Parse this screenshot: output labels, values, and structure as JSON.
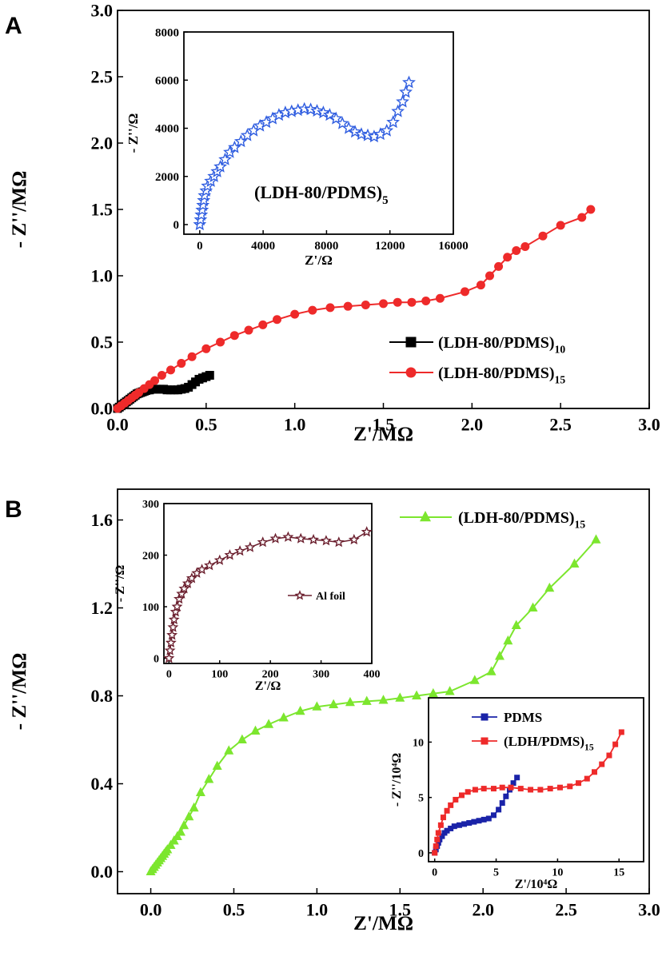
{
  "figure": {
    "panel_a_letter": "A",
    "panel_b_letter": "B"
  },
  "chart_data": [
    {
      "id": "A-main",
      "type": "line",
      "xlabel": "Z'/MΩ",
      "ylabel": "- Z''/MΩ",
      "xlim": [
        0,
        3.0
      ],
      "ylim": [
        0,
        3.0
      ],
      "xticks": [
        "0.0",
        "0.5",
        "1.0",
        "1.5",
        "2.0",
        "2.5",
        "3.0"
      ],
      "yticks": [
        "0.0",
        "0.5",
        "1.0",
        "1.5",
        "2.0",
        "2.5",
        "3.0"
      ],
      "legend_position": "right-center",
      "series": [
        {
          "name": "(LDH-80/PDMS)",
          "name_sub": "10",
          "color": "#000000",
          "marker": "square",
          "x": [
            0.0,
            0.01,
            0.02,
            0.03,
            0.04,
            0.05,
            0.06,
            0.07,
            0.08,
            0.09,
            0.1,
            0.11,
            0.12,
            0.13,
            0.14,
            0.15,
            0.16,
            0.17,
            0.18,
            0.19,
            0.2,
            0.22,
            0.24,
            0.26,
            0.28,
            0.3,
            0.32,
            0.34,
            0.36,
            0.38,
            0.4,
            0.42,
            0.44,
            0.46,
            0.48,
            0.5,
            0.52
          ],
          "y": [
            0.0,
            0.01,
            0.02,
            0.03,
            0.04,
            0.05,
            0.06,
            0.07,
            0.08,
            0.09,
            0.1,
            0.11,
            0.115,
            0.12,
            0.125,
            0.13,
            0.135,
            0.14,
            0.14,
            0.145,
            0.145,
            0.145,
            0.145,
            0.145,
            0.14,
            0.14,
            0.14,
            0.14,
            0.145,
            0.15,
            0.16,
            0.18,
            0.2,
            0.22,
            0.23,
            0.24,
            0.25
          ]
        },
        {
          "name": "(LDH-80/PDMS)",
          "name_sub": "15",
          "color": "#ee2a2a",
          "marker": "circle",
          "x": [
            0.0,
            0.02,
            0.04,
            0.06,
            0.08,
            0.1,
            0.12,
            0.15,
            0.18,
            0.21,
            0.25,
            0.3,
            0.36,
            0.42,
            0.5,
            0.58,
            0.66,
            0.74,
            0.82,
            0.9,
            1.0,
            1.1,
            1.2,
            1.3,
            1.4,
            1.5,
            1.58,
            1.66,
            1.74,
            1.82,
            1.96,
            2.05,
            2.1,
            2.15,
            2.2,
            2.25,
            2.3,
            2.4,
            2.5,
            2.62,
            2.67
          ],
          "y": [
            0.0,
            0.02,
            0.04,
            0.06,
            0.08,
            0.1,
            0.12,
            0.15,
            0.18,
            0.21,
            0.25,
            0.29,
            0.34,
            0.39,
            0.45,
            0.5,
            0.55,
            0.59,
            0.63,
            0.67,
            0.71,
            0.74,
            0.76,
            0.77,
            0.78,
            0.79,
            0.8,
            0.8,
            0.81,
            0.83,
            0.88,
            0.93,
            1.0,
            1.07,
            1.14,
            1.19,
            1.22,
            1.3,
            1.38,
            1.44,
            1.5
          ]
        }
      ]
    },
    {
      "id": "A-inset",
      "type": "scatter",
      "xlabel": "Z'/Ω",
      "ylabel": "- Z''/Ω",
      "xlim": [
        -1000,
        16000
      ],
      "ylim": [
        -400,
        8000
      ],
      "xticks": [
        "0",
        "4000",
        "8000",
        "12000",
        "16000"
      ],
      "yticks": [
        "0",
        "2000",
        "4000",
        "6000",
        "8000"
      ],
      "annotation": "(LDH-80/PDMS)",
      "annotation_sub": "5",
      "series": [
        {
          "color": "#2f5de0",
          "marker": "star",
          "x": [
            0,
            50,
            100,
            150,
            200,
            250,
            300,
            400,
            500,
            700,
            900,
            1100,
            1300,
            1600,
            1900,
            2200,
            2600,
            3000,
            3400,
            3800,
            4200,
            4600,
            5000,
            5400,
            5800,
            6200,
            6600,
            7000,
            7400,
            7800,
            8200,
            8600,
            9000,
            9400,
            9800,
            10200,
            10600,
            11000,
            11400,
            11800,
            12200,
            12500,
            12800,
            13000,
            13200
          ],
          "y": [
            0,
            200,
            400,
            600,
            800,
            1000,
            1200,
            1400,
            1600,
            1800,
            2000,
            2200,
            2400,
            2700,
            3000,
            3200,
            3450,
            3700,
            3900,
            4100,
            4250,
            4400,
            4550,
            4650,
            4700,
            4750,
            4800,
            4780,
            4720,
            4650,
            4550,
            4400,
            4200,
            4000,
            3850,
            3750,
            3700,
            3650,
            3750,
            3900,
            4250,
            4700,
            5100,
            5500,
            5900
          ]
        }
      ]
    },
    {
      "id": "B-main",
      "type": "line",
      "xlabel": "Z'/MΩ",
      "ylabel": "- Z''/MΩ",
      "xlim": [
        -0.2,
        3.0
      ],
      "ylim": [
        -0.1,
        1.74
      ],
      "xticks": [
        "0.0",
        "0.5",
        "1.0",
        "1.5",
        "2.0",
        "2.5",
        "3.0"
      ],
      "yticks": [
        "0.0",
        "0.4",
        "0.8",
        "1.2",
        "1.6"
      ],
      "legend_position": "top-right",
      "series": [
        {
          "name": "(LDH-80/PDMS)",
          "name_sub": "15",
          "color": "#7ce62e",
          "marker": "triangle",
          "x": [
            0.0,
            0.01,
            0.02,
            0.03,
            0.04,
            0.05,
            0.06,
            0.07,
            0.08,
            0.09,
            0.1,
            0.12,
            0.14,
            0.16,
            0.18,
            0.2,
            0.23,
            0.26,
            0.3,
            0.35,
            0.4,
            0.47,
            0.55,
            0.63,
            0.71,
            0.8,
            0.9,
            1.0,
            1.1,
            1.2,
            1.3,
            1.4,
            1.5,
            1.6,
            1.7,
            1.8,
            1.95,
            2.05,
            2.1,
            2.15,
            2.2,
            2.3,
            2.4,
            2.55,
            2.68
          ],
          "y": [
            0.0,
            0.01,
            0.02,
            0.03,
            0.04,
            0.05,
            0.06,
            0.07,
            0.08,
            0.09,
            0.1,
            0.12,
            0.14,
            0.16,
            0.18,
            0.21,
            0.25,
            0.29,
            0.36,
            0.42,
            0.48,
            0.55,
            0.6,
            0.64,
            0.67,
            0.7,
            0.73,
            0.75,
            0.76,
            0.77,
            0.775,
            0.78,
            0.79,
            0.8,
            0.81,
            0.82,
            0.87,
            0.91,
            0.98,
            1.05,
            1.12,
            1.2,
            1.29,
            1.4,
            1.51
          ]
        }
      ]
    },
    {
      "id": "B-inset-top",
      "type": "line",
      "xlabel": "Z'/Ω",
      "ylabel": "- Z''/Ω",
      "xlim": [
        -10,
        400
      ],
      "ylim": [
        -10,
        300
      ],
      "xticks": [
        "0",
        "100",
        "200",
        "300",
        "400"
      ],
      "yticks": [
        "0",
        "100",
        "200",
        "300"
      ],
      "series": [
        {
          "name": "Al foil",
          "color": "#6b1f2e",
          "marker": "star",
          "x": [
            0,
            2,
            4,
            6,
            8,
            10,
            13,
            16,
            20,
            25,
            30,
            37,
            45,
            55,
            65,
            80,
            100,
            120,
            140,
            160,
            185,
            210,
            235,
            260,
            285,
            310,
            335,
            365,
            390
          ],
          "y": [
            0,
            15,
            30,
            45,
            60,
            75,
            90,
            100,
            115,
            125,
            135,
            145,
            155,
            165,
            172,
            180,
            190,
            200,
            208,
            215,
            225,
            232,
            235,
            232,
            230,
            228,
            225,
            230,
            245
          ]
        }
      ]
    },
    {
      "id": "B-inset-bottom",
      "type": "line",
      "xlabel": "Z'/10⁴Ω",
      "ylabel": "- Z''/10⁴Ω",
      "xlim": [
        -0.5,
        17
      ],
      "ylim": [
        -0.8,
        14
      ],
      "xticks": [
        "0",
        "5",
        "10",
        "15"
      ],
      "yticks": [
        "0",
        "5",
        "10"
      ],
      "legend_position": "top",
      "series": [
        {
          "name": "PDMS",
          "color": "#1a23a8",
          "marker": "square",
          "x": [
            0,
            0.1,
            0.2,
            0.3,
            0.4,
            0.6,
            0.8,
            1.0,
            1.3,
            1.6,
            2.0,
            2.4,
            2.8,
            3.2,
            3.6,
            4.0,
            4.4,
            4.8,
            5.2,
            5.5,
            5.8,
            6.1,
            6.4,
            6.7
          ],
          "y": [
            0,
            0.3,
            0.6,
            0.9,
            1.2,
            1.5,
            1.8,
            2.0,
            2.2,
            2.4,
            2.5,
            2.6,
            2.7,
            2.8,
            2.9,
            3.0,
            3.1,
            3.4,
            3.9,
            4.5,
            5.1,
            5.7,
            6.3,
            6.8
          ]
        },
        {
          "name": "(LDH/PDMS)",
          "name_sub": "15",
          "color": "#ee2a2a",
          "marker": "square",
          "x": [
            0,
            0.1,
            0.2,
            0.3,
            0.5,
            0.7,
            1.0,
            1.3,
            1.7,
            2.2,
            2.7,
            3.3,
            4.0,
            4.8,
            5.5,
            6.2,
            7.0,
            7.8,
            8.6,
            9.4,
            10.2,
            11.0,
            11.7,
            12.4,
            13.0,
            13.6,
            14.2,
            14.7,
            15.2
          ],
          "y": [
            0,
            0.6,
            1.2,
            1.8,
            2.5,
            3.2,
            3.8,
            4.3,
            4.8,
            5.2,
            5.5,
            5.7,
            5.8,
            5.8,
            5.9,
            5.9,
            5.8,
            5.7,
            5.7,
            5.8,
            5.9,
            6.0,
            6.3,
            6.7,
            7.3,
            8.0,
            8.8,
            9.8,
            10.9
          ]
        }
      ]
    }
  ]
}
